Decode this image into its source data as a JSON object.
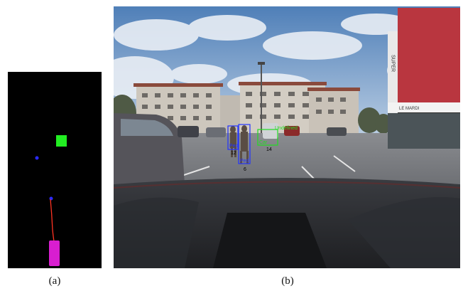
{
  "captions": {
    "a": "(a)",
    "b": "(b)"
  },
  "colors": {
    "map_background": "#000000",
    "ego_vehicle": "#d81ed0",
    "ego_trajectory": "#ff3322",
    "tracked_point": "#2a2aff",
    "occupied_cell": "#22ee22",
    "box_pedestrian": "#2233ff",
    "box_car": "#22dd22"
  },
  "storefront": {
    "sign": "LE MARDI",
    "vertical_letters": "SUPER"
  },
  "detections": [
    {
      "label": "Ped",
      "track_id": "12",
      "color": "#2233ff"
    },
    {
      "label": "Ped",
      "track_id": "6",
      "color": "#2233ff"
    },
    {
      "label": "Car",
      "track_id": "14",
      "color": "#22dd22"
    },
    {
      "label": "Undefined",
      "track_id": "",
      "color": "#22dd22"
    }
  ]
}
